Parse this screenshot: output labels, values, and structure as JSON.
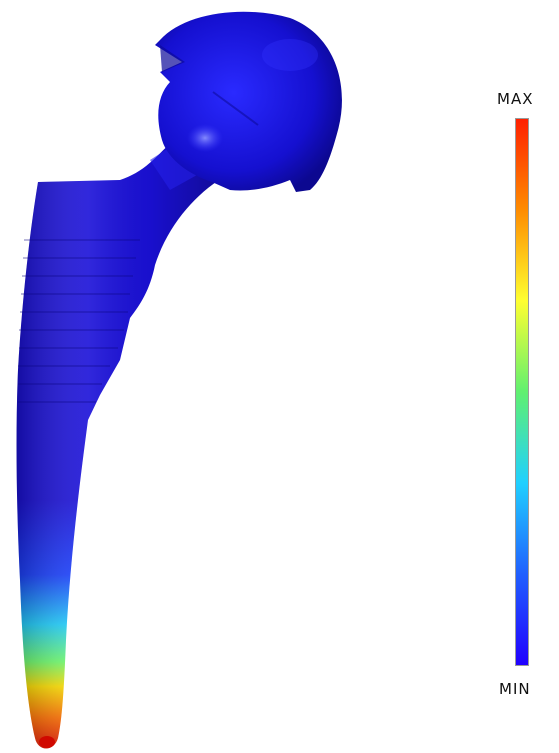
{
  "legend": {
    "max_label": "MAX",
    "min_label": "MIN",
    "gradient_stops": [
      "#ff2000",
      "#ff8c00",
      "#ffff30",
      "#60f070",
      "#20d0ff",
      "#2060ff",
      "#2000ff"
    ]
  },
  "implant": {
    "base_color": "#1a10d8",
    "tip_gradient": [
      "#1a10d8",
      "#1a40ff",
      "#20d0ff",
      "#70ff70",
      "#ffe000",
      "#ff7000",
      "#e01000"
    ]
  }
}
